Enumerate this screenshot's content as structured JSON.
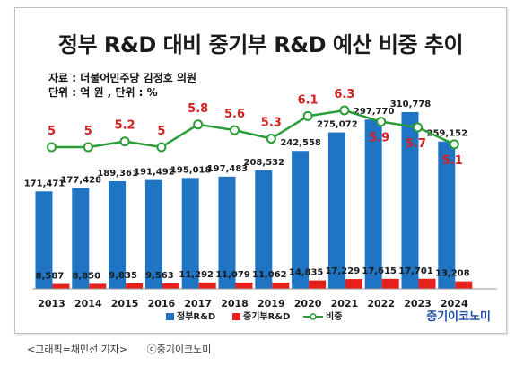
{
  "header": {
    "title": "정부 R&D 대비 중기부 R&D 예산 비중 추이",
    "source": "자료 : 더불어민주당 김정호 의원",
    "unit": "단위 : 억 원 , 단위 : %"
  },
  "brand": {
    "logo_text": "중기이코노미"
  },
  "footer": {
    "credit": "<그래픽=채민선 기자>",
    "copyright": "ⓒ중기이코노미"
  },
  "colors": {
    "gov": "#1f74c4",
    "sme": "#e8201c",
    "ratio": "#2a9c38",
    "ratio_label": "#d42020"
  },
  "chart_data": {
    "type": "bar",
    "categories": [
      "2013",
      "2014",
      "2015",
      "2016",
      "2017",
      "2018",
      "2019",
      "2020",
      "2021",
      "2022",
      "2023",
      "2024"
    ],
    "series": [
      {
        "name": "정부R&D",
        "type": "bar",
        "color": "#1f74c4",
        "values": [
          171471,
          177428,
          189361,
          191492,
          195018,
          197483,
          208532,
          242558,
          275072,
          297770,
          310778,
          259152
        ],
        "labels": [
          "171,471",
          "177,428",
          "189,361",
          "191,492",
          "195,018",
          "197,483",
          "208,532",
          "242,558",
          "275,072",
          "297,770",
          "310,778",
          "259,152"
        ]
      },
      {
        "name": "중기부R&D",
        "type": "bar",
        "color": "#e8201c",
        "values": [
          8587,
          8850,
          9835,
          9563,
          11292,
          11079,
          11062,
          14835,
          17229,
          17615,
          17701,
          13208
        ],
        "labels": [
          "8,587",
          "8,850",
          "9,835",
          "9,563",
          "11,292",
          "11,079",
          "11,062",
          "14,835",
          "17,229",
          "17,615",
          "17,701",
          "13,208"
        ]
      },
      {
        "name": "비중",
        "type": "line",
        "color": "#2a9c38",
        "values": [
          5,
          5,
          5.2,
          5,
          5.8,
          5.6,
          5.3,
          6.1,
          6.3,
          5.9,
          5.7,
          5.1
        ],
        "labels": [
          "5",
          "5",
          "5.2",
          "5",
          "5.8",
          "5.6",
          "5.3",
          "6.1",
          "6.3",
          "5.9",
          "5.7",
          "5.1"
        ]
      }
    ],
    "legend": [
      "정부R&D",
      "중기부R&D",
      "비중"
    ],
    "legend_position": "bottom",
    "grid": false
  }
}
